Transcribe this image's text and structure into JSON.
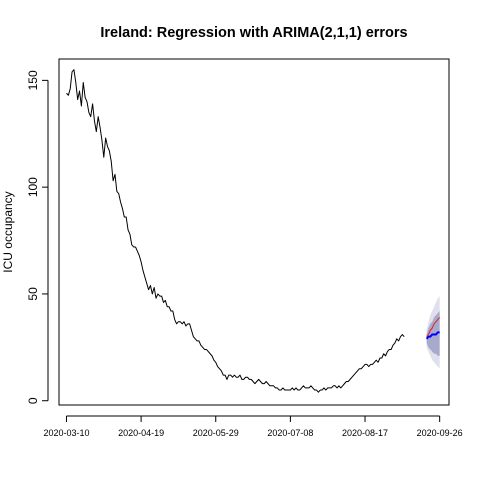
{
  "chart_data": {
    "type": "line",
    "title": "Ireland: Regression with ARIMA(2,1,1) errors",
    "ylabel": "ICU occupancy",
    "xlabel": "",
    "x_start": "2020-03-10",
    "x_end": "2020-09-26",
    "xlim": [
      "2020-03-06",
      "2020-10-01"
    ],
    "ylim": [
      -2,
      160
    ],
    "x_ticks": [
      "2020-03-10",
      "2020-04-19",
      "2020-05-29",
      "2020-07-08",
      "2020-08-17",
      "2020-09-26"
    ],
    "y_ticks": [
      0,
      50,
      100,
      150
    ],
    "grid": false,
    "series": [
      {
        "role": "observed",
        "color": "#000000",
        "start": "2020-03-10",
        "values": [
          144,
          143,
          146,
          154,
          155,
          149,
          141,
          145,
          138,
          149,
          142,
          140,
          135,
          133,
          139,
          131,
          126,
          133,
          128,
          122,
          114,
          123,
          119,
          117,
          112,
          103,
          106,
          98,
          97,
          93,
          90,
          86,
          86,
          80,
          78,
          73,
          72,
          72,
          70,
          68,
          65,
          61,
          58,
          55,
          52,
          54,
          50,
          53,
          48,
          50,
          49,
          49,
          46,
          47,
          44,
          44,
          42,
          42,
          38,
          36,
          37,
          37,
          36,
          37,
          35,
          36,
          36,
          33,
          30,
          29,
          28,
          28,
          26,
          25,
          24,
          24,
          23,
          22,
          21,
          19,
          18,
          16,
          15,
          14,
          12,
          12,
          10,
          12,
          12,
          11,
          12,
          11,
          11,
          12,
          10,
          10,
          11,
          11,
          10,
          10,
          9,
          8,
          9,
          10,
          9,
          8,
          8,
          9,
          8,
          7,
          7,
          7,
          6,
          6,
          5,
          5,
          6,
          5,
          5,
          5,
          5,
          6,
          5,
          6,
          5,
          5,
          6,
          7,
          6,
          6,
          6,
          7,
          6,
          5,
          5,
          4,
          5,
          5,
          6,
          5,
          6,
          6,
          6,
          7,
          7,
          6,
          7,
          6,
          7,
          8,
          9,
          9,
          10,
          11,
          12,
          13,
          14,
          15,
          15,
          16,
          17,
          17,
          16,
          17,
          17,
          18,
          19,
          18,
          20,
          20,
          22,
          21,
          23,
          24,
          24,
          26,
          27,
          29,
          28,
          30,
          31,
          30
        ]
      },
      {
        "role": "actual",
        "color": "#e0211a",
        "start": "2020-09-19",
        "values": [
          30,
          31,
          33,
          34,
          36,
          37,
          38,
          39
        ]
      },
      {
        "role": "forecast",
        "color": "#0000ff",
        "start": "2020-09-19",
        "values": [
          29,
          30,
          30,
          31,
          31,
          31,
          32,
          32
        ]
      }
    ],
    "intervals": [
      {
        "level": 95,
        "color": "#e0e0ec",
        "start": "2020-09-19",
        "lower": [
          25,
          23,
          21,
          19,
          18,
          17,
          16,
          15
        ],
        "upper": [
          33,
          37,
          40,
          42,
          44,
          46,
          48,
          49
        ]
      },
      {
        "level": 80,
        "color": "#a8a9cd",
        "start": "2020-09-19",
        "lower": [
          27,
          25,
          24,
          23,
          22,
          22,
          21,
          21
        ],
        "upper": [
          31,
          34,
          36,
          37,
          39,
          40,
          41,
          42
        ]
      }
    ]
  }
}
